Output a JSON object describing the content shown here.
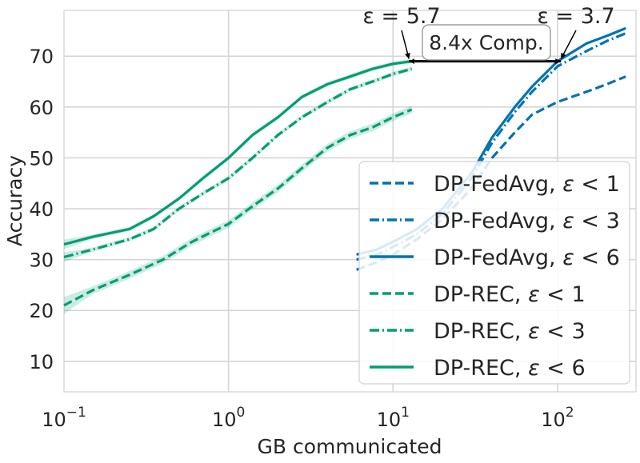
{
  "chart_data": {
    "type": "line",
    "xscale": "log",
    "xlim": [
      0.1,
      300
    ],
    "ylim": [
      4,
      79
    ],
    "xlabel": "GB communicated",
    "ylabel": "Accuracy",
    "x_ticks": [
      {
        "value": 0.1,
        "base": "10",
        "exp": "−1"
      },
      {
        "value": 1,
        "base": "10",
        "exp": "0"
      },
      {
        "value": 10,
        "base": "10",
        "exp": "1"
      },
      {
        "value": 100,
        "base": "10",
        "exp": "2"
      }
    ],
    "y_ticks": [
      {
        "value": 10,
        "label": "10"
      },
      {
        "value": 20,
        "label": "20"
      },
      {
        "value": 30,
        "label": "30"
      },
      {
        "value": 40,
        "label": "40"
      },
      {
        "value": 50,
        "label": "50"
      },
      {
        "value": 60,
        "label": "60"
      },
      {
        "value": 70,
        "label": "70"
      }
    ],
    "grid": true,
    "legend_position": "lower-right",
    "series": [
      {
        "name": "DP-FedAvg, ε < 1",
        "method": "DP-FedAvg",
        "eps": "1",
        "color": "#0173b2",
        "style": "dashed",
        "band": false,
        "x": [
          6,
          8,
          10,
          14,
          20,
          30,
          40,
          55,
          70,
          100,
          150,
          200,
          260
        ],
        "y": [
          28,
          29.5,
          31,
          34,
          38,
          44,
          50,
          55,
          58.5,
          61,
          63,
          64.5,
          66
        ]
      },
      {
        "name": "DP-FedAvg, ε < 3",
        "method": "DP-FedAvg",
        "eps": "3",
        "color": "#0173b2",
        "style": "dashdot",
        "band": false,
        "x": [
          6,
          8,
          10,
          14,
          20,
          30,
          40,
          55,
          70,
          100,
          150,
          200,
          260
        ],
        "y": [
          30,
          31,
          32.5,
          35,
          39,
          46,
          53,
          59,
          63,
          68,
          71,
          73,
          74.5
        ]
      },
      {
        "name": "DP-FedAvg, ε < 6",
        "method": "DP-FedAvg",
        "eps": "6",
        "color": "#0173b2",
        "style": "solid",
        "band": false,
        "x": [
          6,
          8,
          10,
          14,
          20,
          30,
          40,
          55,
          70,
          100,
          150,
          200,
          260
        ],
        "y": [
          31,
          32,
          33.5,
          36,
          40,
          47,
          54,
          60,
          64,
          69,
          72.5,
          74,
          75.5
        ]
      },
      {
        "name": "DP-REC, ε < 1",
        "method": "DP-REC",
        "eps": "1",
        "color": "#029e73",
        "style": "dashed",
        "band": true,
        "x": [
          0.1,
          0.15,
          0.25,
          0.4,
          0.6,
          0.8,
          1.0,
          1.4,
          2.0,
          2.8,
          4.0,
          5.5,
          7.5,
          10,
          13
        ],
        "y": [
          21,
          24,
          27,
          30,
          33.5,
          35.5,
          37,
          40.5,
          44,
          48,
          52,
          54.5,
          56,
          58,
          59.5
        ]
      },
      {
        "name": "DP-REC, ε < 3",
        "method": "DP-REC",
        "eps": "3",
        "color": "#029e73",
        "style": "dashdot",
        "band": true,
        "x": [
          0.1,
          0.15,
          0.25,
          0.35,
          0.5,
          0.7,
          1.0,
          1.4,
          2.0,
          2.8,
          4.0,
          5.5,
          7.5,
          10,
          13
        ],
        "y": [
          30.5,
          32,
          34,
          36,
          40,
          43,
          46,
          50,
          54.5,
          58,
          61,
          63.5,
          65,
          66.5,
          67.5
        ]
      },
      {
        "name": "DP-REC, ε < 6",
        "method": "DP-REC",
        "eps": "6",
        "color": "#029e73",
        "style": "solid",
        "band": true,
        "x": [
          0.1,
          0.15,
          0.25,
          0.35,
          0.5,
          0.7,
          1.0,
          1.4,
          2.0,
          2.8,
          4.0,
          5.5,
          7.5,
          10,
          13
        ],
        "y": [
          33,
          34.5,
          36,
          38.5,
          42,
          46,
          50,
          54.5,
          58,
          62,
          64.5,
          66,
          67.5,
          68.5,
          69
        ]
      }
    ],
    "annotations": {
      "left_eps": {
        "text": "ε = 5.7",
        "x": 12.5,
        "y": 69
      },
      "right_eps": {
        "text": "ε = 3.7",
        "x": 105,
        "y": 69
      },
      "compression": {
        "text": "8.4x Comp.",
        "x_from": 12.5,
        "x_to": 105,
        "y": 69
      }
    }
  }
}
